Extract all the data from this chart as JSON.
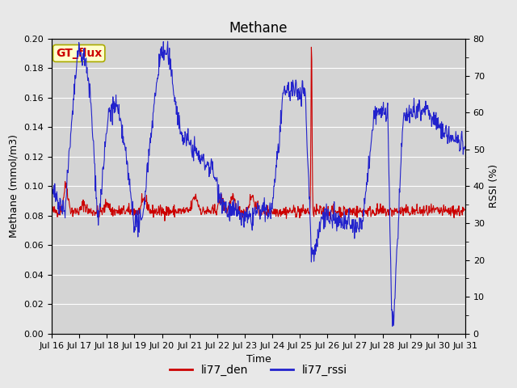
{
  "title": "Methane",
  "ylabel_left": "Methane (mmol/m3)",
  "ylabel_right": "RSSI (%)",
  "xlabel": "Time",
  "ylim_left": [
    0.0,
    0.2
  ],
  "ylim_right": [
    0,
    80
  ],
  "yticks_left": [
    0.0,
    0.02,
    0.04,
    0.06,
    0.08,
    0.1,
    0.12,
    0.14,
    0.16,
    0.18,
    0.2
  ],
  "yticks_right": [
    0,
    10,
    20,
    30,
    40,
    50,
    60,
    70,
    80
  ],
  "xtick_labels": [
    "Jul 16",
    "Jul 17",
    "Jul 18",
    "Jul 19",
    "Jul 20",
    "Jul 21",
    "Jul 22",
    "Jul 23",
    "Jul 24",
    "Jul 25",
    "Jul 26",
    "Jul 27",
    "Jul 28",
    "Jul 29",
    "Jul 30",
    "Jul 31"
  ],
  "fig_bg_color": "#e8e8e8",
  "plot_bg_color": "#d4d4d4",
  "grid_color": "#ffffff",
  "line_color_den": "#cc0000",
  "line_color_rssi": "#2222cc",
  "legend_items": [
    "li77_den",
    "li77_rssi"
  ],
  "legend_colors": [
    "#cc0000",
    "#2222cc"
  ],
  "gt_flux_label": "GT_flux",
  "gt_flux_bg": "#ffffcc",
  "gt_flux_border": "#aaaa00",
  "gt_flux_text_color": "#cc0000",
  "title_fontsize": 12,
  "axis_label_fontsize": 9,
  "tick_fontsize": 8,
  "legend_fontsize": 10
}
